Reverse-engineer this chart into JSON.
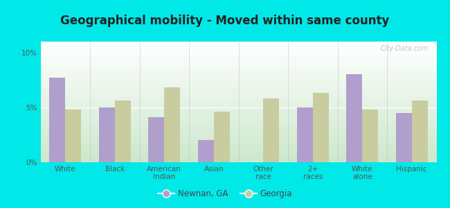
{
  "title": "Geographical mobility - Moved within same county",
  "categories": [
    "White",
    "Black",
    "American\nIndian",
    "Asian",
    "Other\nrace",
    "2+\nraces",
    "White\nalone",
    "Hispanic"
  ],
  "newnan_values": [
    7.7,
    5.0,
    4.1,
    2.0,
    0.0,
    5.0,
    8.0,
    4.5
  ],
  "georgia_values": [
    4.8,
    5.6,
    6.8,
    4.6,
    5.8,
    6.3,
    4.8,
    5.6
  ],
  "newnan_color": "#b09fcc",
  "georgia_color": "#c8cc9f",
  "background_color": "#00e8e8",
  "gradient_top": "#ffffff",
  "gradient_bottom": "#cce8cc",
  "ylim": [
    0,
    11
  ],
  "yticks": [
    0,
    5,
    10
  ],
  "ytick_labels": [
    "0%",
    "5%",
    "10%"
  ],
  "bar_width": 0.32,
  "legend_labels": [
    "Newnan, GA",
    "Georgia"
  ],
  "watermark": "City-Data.com",
  "title_fontsize": 12,
  "tick_fontsize": 7.5,
  "legend_fontsize": 8.5
}
